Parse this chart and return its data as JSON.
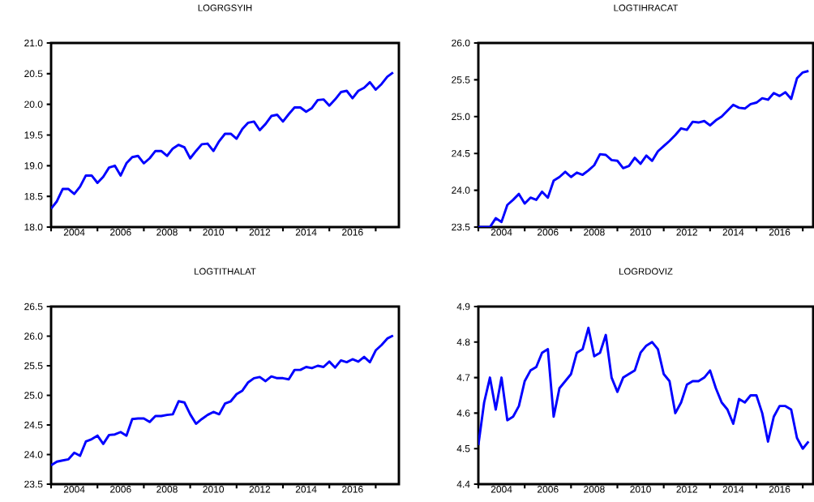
{
  "chart_data": [
    {
      "type": "line",
      "title": "LOGRGSYIH",
      "color": "#0000ff",
      "x": [
        2003,
        2003.25,
        2003.5,
        2003.75,
        2004,
        2004.25,
        2004.5,
        2004.75,
        2005,
        2005.25,
        2005.5,
        2005.75,
        2006,
        2006.25,
        2006.5,
        2006.75,
        2007,
        2007.25,
        2007.5,
        2007.75,
        2008,
        2008.25,
        2008.5,
        2008.75,
        2009,
        2009.25,
        2009.5,
        2009.75,
        2010,
        2010.25,
        2010.5,
        2010.75,
        2011,
        2011.25,
        2011.5,
        2011.75,
        2012,
        2012.25,
        2012.5,
        2012.75,
        2013,
        2013.25,
        2013.5,
        2013.75,
        2014,
        2014.25,
        2014.5,
        2014.75,
        2015,
        2015.25,
        2015.5,
        2015.75,
        2016,
        2016.25,
        2016.5,
        2016.75,
        2017,
        2017.25,
        2017.5,
        2017.75
      ],
      "values": [
        18.3,
        18.42,
        18.62,
        18.62,
        18.54,
        18.66,
        18.84,
        18.84,
        18.72,
        18.82,
        18.97,
        19.0,
        18.84,
        19.04,
        19.14,
        19.16,
        19.04,
        19.12,
        19.24,
        19.24,
        19.16,
        19.28,
        19.34,
        19.3,
        19.12,
        19.24,
        19.35,
        19.36,
        19.24,
        19.4,
        19.52,
        19.52,
        19.44,
        19.6,
        19.7,
        19.72,
        19.58,
        19.68,
        19.81,
        19.83,
        19.72,
        19.84,
        19.95,
        19.95,
        19.88,
        19.94,
        20.07,
        20.08,
        19.98,
        20.08,
        20.2,
        20.22,
        20.1,
        20.22,
        20.27,
        20.36,
        20.24,
        20.33,
        20.45,
        20.52
      ],
      "xlim": [
        2003,
        2018
      ],
      "ylim": [
        18,
        21
      ],
      "xticks": [
        {
          "value": 2003,
          "label": null
        },
        {
          "value": 2004,
          "label": "2004"
        },
        {
          "value": 2005,
          "label": null
        },
        {
          "value": 2006,
          "label": "2006"
        },
        {
          "value": 2007,
          "label": null
        },
        {
          "value": 2008,
          "label": "2008"
        },
        {
          "value": 2009,
          "label": null
        },
        {
          "value": 2010,
          "label": "2010"
        },
        {
          "value": 2011,
          "label": null
        },
        {
          "value": 2012,
          "label": "2012"
        },
        {
          "value": 2013,
          "label": null
        },
        {
          "value": 2014,
          "label": "2014"
        },
        {
          "value": 2015,
          "label": null
        },
        {
          "value": 2016,
          "label": "2016"
        },
        {
          "value": 2017,
          "label": null
        }
      ],
      "yticks": [
        {
          "value": 18,
          "label": "18.0"
        },
        18.5,
        {
          "value": 19,
          "label": "19.0"
        },
        19.5,
        {
          "value": 20,
          "label": "20.0"
        },
        20.5,
        {
          "value": 21,
          "label": "21.0"
        }
      ]
    },
    {
      "type": "line",
      "title": "LOGTIHRACAT",
      "color": "#0000ff",
      "x": [
        2003,
        2003.25,
        2003.5,
        2003.75,
        2004,
        2004.25,
        2004.5,
        2004.75,
        2005,
        2005.25,
        2005.5,
        2005.75,
        2006,
        2006.25,
        2006.5,
        2006.75,
        2007,
        2007.25,
        2007.5,
        2007.75,
        2008,
        2008.25,
        2008.5,
        2008.75,
        2009,
        2009.25,
        2009.5,
        2009.75,
        2010,
        2010.25,
        2010.5,
        2010.75,
        2011,
        2011.25,
        2011.5,
        2011.75,
        2012,
        2012.25,
        2012.5,
        2012.75,
        2013,
        2013.25,
        2013.5,
        2013.75,
        2014,
        2014.25,
        2014.5,
        2014.75,
        2015,
        2015.25,
        2015.5,
        2015.75,
        2016,
        2016.25,
        2016.5,
        2016.75,
        2017,
        2017.25
      ],
      "values": [
        23.5,
        23.5,
        23.5,
        23.62,
        23.57,
        23.8,
        23.87,
        23.95,
        23.82,
        23.9,
        23.87,
        23.98,
        23.9,
        24.13,
        24.18,
        24.25,
        24.18,
        24.24,
        24.21,
        24.27,
        24.34,
        24.49,
        24.48,
        24.41,
        24.4,
        24.3,
        24.33,
        24.44,
        24.36,
        24.47,
        24.4,
        24.53,
        24.6,
        24.67,
        24.75,
        24.84,
        24.82,
        24.93,
        24.92,
        24.94,
        24.88,
        24.95,
        25.0,
        25.08,
        25.16,
        25.12,
        25.11,
        25.17,
        25.19,
        25.25,
        25.23,
        25.32,
        25.28,
        25.33,
        25.24,
        25.52,
        25.6,
        25.62
      ],
      "xlim": [
        2003,
        2017.45
      ],
      "ylim": [
        23.5,
        26
      ],
      "xticks": [
        {
          "value": 2003,
          "label": null
        },
        {
          "value": 2004,
          "label": "2004"
        },
        {
          "value": 2005,
          "label": null
        },
        {
          "value": 2006,
          "label": "2006"
        },
        {
          "value": 2007,
          "label": null
        },
        {
          "value": 2008,
          "label": "2008"
        },
        {
          "value": 2009,
          "label": null
        },
        {
          "value": 2010,
          "label": "2010"
        },
        {
          "value": 2011,
          "label": null
        },
        {
          "value": 2012,
          "label": "2012"
        },
        {
          "value": 2013,
          "label": null
        },
        {
          "value": 2014,
          "label": "2014"
        },
        {
          "value": 2015,
          "label": null
        },
        {
          "value": 2016,
          "label": "2016"
        },
        {
          "value": 2017,
          "label": null
        }
      ],
      "yticks": [
        23.5,
        {
          "value": 24,
          "label": "24.0"
        },
        24.5,
        {
          "value": 25,
          "label": "25.0"
        },
        25.5,
        {
          "value": 26,
          "label": "26.0"
        }
      ]
    },
    {
      "type": "line",
      "title": "LOGTITHALAT",
      "color": "#0000ff",
      "x": [
        2003,
        2003.25,
        2003.5,
        2003.75,
        2004,
        2004.25,
        2004.5,
        2004.75,
        2005,
        2005.25,
        2005.5,
        2005.75,
        2006,
        2006.25,
        2006.5,
        2006.75,
        2007,
        2007.25,
        2007.5,
        2007.75,
        2008,
        2008.25,
        2008.5,
        2008.75,
        2009,
        2009.25,
        2009.5,
        2009.75,
        2010,
        2010.25,
        2010.5,
        2010.75,
        2011,
        2011.25,
        2011.5,
        2011.75,
        2012,
        2012.25,
        2012.5,
        2012.75,
        2013,
        2013.25,
        2013.5,
        2013.75,
        2014,
        2014.25,
        2014.5,
        2014.75,
        2015,
        2015.25,
        2015.5,
        2015.75,
        2016,
        2016.25,
        2016.5,
        2016.75,
        2017,
        2017.25,
        2017.5,
        2017.75
      ],
      "values": [
        23.82,
        23.88,
        23.9,
        23.92,
        24.03,
        23.98,
        24.22,
        24.26,
        24.32,
        24.18,
        24.33,
        24.34,
        24.38,
        24.32,
        24.6,
        24.61,
        24.61,
        24.55,
        24.65,
        24.65,
        24.67,
        24.68,
        24.9,
        24.88,
        24.68,
        24.52,
        24.6,
        24.67,
        24.72,
        24.68,
        24.86,
        24.9,
        25.02,
        25.08,
        25.22,
        25.29,
        25.31,
        25.24,
        25.32,
        25.29,
        25.29,
        25.27,
        25.43,
        25.43,
        25.48,
        25.46,
        25.5,
        25.48,
        25.57,
        25.47,
        25.59,
        25.56,
        25.61,
        25.57,
        25.65,
        25.56,
        25.76,
        25.85,
        25.96,
        26.01
      ],
      "xlim": [
        2003,
        2018
      ],
      "ylim": [
        23.5,
        26.5
      ],
      "xticks": [
        {
          "value": 2003,
          "label": null
        },
        {
          "value": 2004,
          "label": "2004"
        },
        {
          "value": 2005,
          "label": null
        },
        {
          "value": 2006,
          "label": "2006"
        },
        {
          "value": 2007,
          "label": null
        },
        {
          "value": 2008,
          "label": "2008"
        },
        {
          "value": 2009,
          "label": null
        },
        {
          "value": 2010,
          "label": "2010"
        },
        {
          "value": 2011,
          "label": null
        },
        {
          "value": 2012,
          "label": "2012"
        },
        {
          "value": 2013,
          "label": null
        },
        {
          "value": 2014,
          "label": "2014"
        },
        {
          "value": 2015,
          "label": null
        },
        {
          "value": 2016,
          "label": "2016"
        },
        {
          "value": 2017,
          "label": null
        }
      ],
      "yticks": [
        23.5,
        {
          "value": 24,
          "label": "24.0"
        },
        24.5,
        {
          "value": 25,
          "label": "25.0"
        },
        25.5,
        {
          "value": 26,
          "label": "26.0"
        },
        26.5
      ]
    },
    {
      "type": "line",
      "title": "LOGRDOVIZ",
      "color": "#0000ff",
      "x": [
        2003,
        2003.25,
        2003.5,
        2003.75,
        2004,
        2004.25,
        2004.5,
        2004.75,
        2005,
        2005.25,
        2005.5,
        2005.75,
        2006,
        2006.25,
        2006.5,
        2006.75,
        2007,
        2007.25,
        2007.5,
        2007.75,
        2008,
        2008.25,
        2008.5,
        2008.75,
        2009,
        2009.25,
        2009.5,
        2009.75,
        2010,
        2010.25,
        2010.5,
        2010.75,
        2011,
        2011.25,
        2011.5,
        2011.75,
        2012,
        2012.25,
        2012.5,
        2012.75,
        2013,
        2013.25,
        2013.5,
        2013.75,
        2014,
        2014.25,
        2014.5,
        2014.75,
        2015,
        2015.25,
        2015.5,
        2015.75,
        2016,
        2016.25,
        2016.5,
        2016.75,
        2017,
        2017.25
      ],
      "values": [
        4.51,
        4.63,
        4.7,
        4.61,
        4.7,
        4.58,
        4.59,
        4.62,
        4.69,
        4.72,
        4.73,
        4.77,
        4.78,
        4.59,
        4.67,
        4.69,
        4.71,
        4.77,
        4.78,
        4.84,
        4.76,
        4.77,
        4.82,
        4.7,
        4.66,
        4.7,
        4.71,
        4.72,
        4.77,
        4.79,
        4.8,
        4.78,
        4.71,
        4.69,
        4.6,
        4.63,
        4.68,
        4.69,
        4.69,
        4.7,
        4.72,
        4.67,
        4.63,
        4.61,
        4.57,
        4.64,
        4.63,
        4.65,
        4.65,
        4.6,
        4.52,
        4.59,
        4.62,
        4.62,
        4.61,
        4.53,
        4.5,
        4.52
      ],
      "xlim": [
        2003,
        2017.45
      ],
      "ylim": [
        4.4,
        4.9
      ],
      "xticks": [
        {
          "value": 2003,
          "label": null
        },
        {
          "value": 2004,
          "label": "2004"
        },
        {
          "value": 2005,
          "label": null
        },
        {
          "value": 2006,
          "label": "2006"
        },
        {
          "value": 2007,
          "label": null
        },
        {
          "value": 2008,
          "label": "2008"
        },
        {
          "value": 2009,
          "label": null
        },
        {
          "value": 2010,
          "label": "2010"
        },
        {
          "value": 2011,
          "label": null
        },
        {
          "value": 2012,
          "label": "2012"
        },
        {
          "value": 2013,
          "label": null
        },
        {
          "value": 2014,
          "label": "2014"
        },
        {
          "value": 2015,
          "label": null
        },
        {
          "value": 2016,
          "label": "2016"
        },
        {
          "value": 2017,
          "label": null
        }
      ],
      "yticks": [
        4.4,
        4.5,
        4.6,
        4.7,
        4.8,
        4.9
      ]
    }
  ]
}
